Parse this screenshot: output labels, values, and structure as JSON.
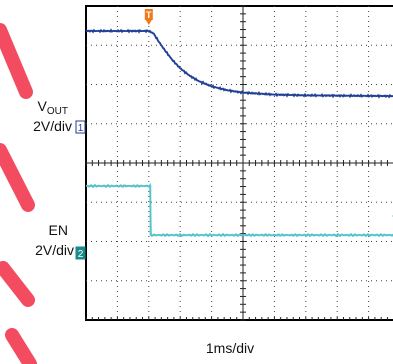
{
  "chart_data": {
    "type": "line",
    "title": "",
    "xlabel": "1ms/div",
    "x_unit": "ms",
    "xlim": [
      0,
      10
    ],
    "grid": true,
    "divisions": {
      "x": 10,
      "y": 8
    },
    "trigger_marker": "T",
    "series": [
      {
        "name": "VOUT",
        "label_main": "V",
        "label_sub": "OUT",
        "scale": "2V/div",
        "marker": "1",
        "color": "#1f3f94",
        "points": [
          [
            0,
            0
          ],
          [
            2.0,
            0
          ],
          [
            2.15,
            -0.06
          ],
          [
            2.3,
            -0.25
          ],
          [
            2.5,
            -0.48
          ],
          [
            2.75,
            -0.74
          ],
          [
            3.0,
            -0.95
          ],
          [
            3.3,
            -1.14
          ],
          [
            3.6,
            -1.28
          ],
          [
            4.0,
            -1.41
          ],
          [
            4.5,
            -1.51
          ],
          [
            5.0,
            -1.57
          ],
          [
            6.0,
            -1.62
          ],
          [
            7.0,
            -1.64
          ],
          [
            10.0,
            -1.66
          ]
        ]
      },
      {
        "name": "EN",
        "label_main": "EN",
        "label_sub": "",
        "scale": "2V/div",
        "marker": "2",
        "color": "#4fc3c9",
        "points": [
          [
            0,
            0
          ],
          [
            2.05,
            0
          ],
          [
            2.05,
            -1.25
          ],
          [
            10.0,
            -1.25
          ]
        ]
      }
    ]
  },
  "watermark_color": "#f2384f"
}
